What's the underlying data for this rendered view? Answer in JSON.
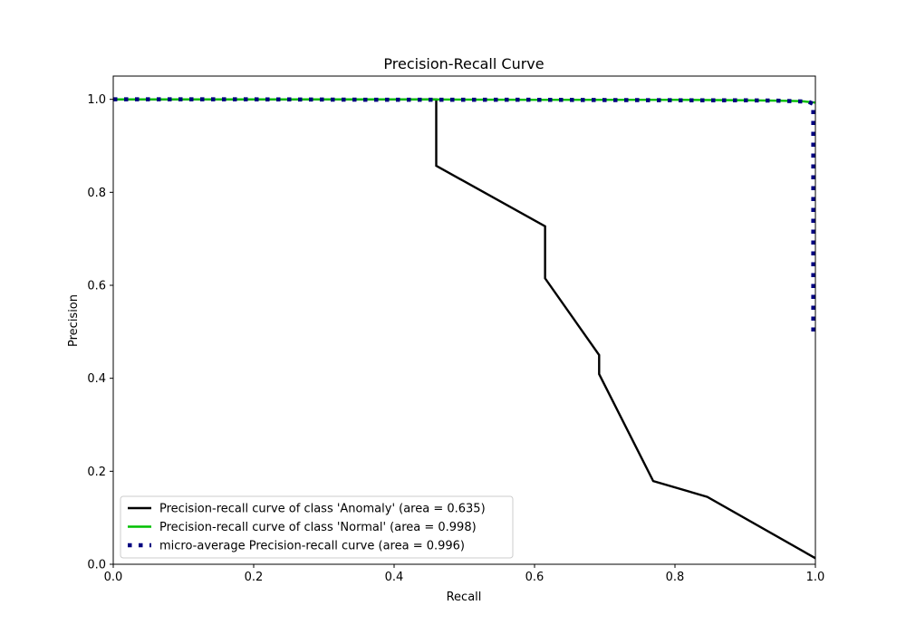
{
  "chart_data": {
    "type": "line",
    "title": "Precision-Recall Curve",
    "xlabel": "Recall",
    "ylabel": "Precision",
    "xlim": [
      0,
      1
    ],
    "ylim": [
      0,
      1.05
    ],
    "xticks": [
      "0.0",
      "0.2",
      "0.4",
      "0.6",
      "0.8",
      "1.0"
    ],
    "yticks": [
      "0.0",
      "0.2",
      "0.4",
      "0.6",
      "0.8",
      "1.0"
    ],
    "grid": false,
    "legend_position": "lower-left",
    "series": [
      {
        "name": "Precision-recall curve of class 'Anomaly' (area = 0.635)",
        "color": "#000000",
        "style": "solid",
        "x": [
          0.0,
          0.46,
          0.46,
          0.46,
          0.615,
          0.615,
          0.692,
          0.692,
          0.769,
          0.846,
          1.0
        ],
        "y": [
          1.0,
          1.0,
          0.999,
          0.857,
          0.727,
          0.615,
          0.45,
          0.409,
          0.179,
          0.145,
          0.013
        ]
      },
      {
        "name": "Precision-recall curve of class 'Normal' (area = 0.998)",
        "color": "#00bf00",
        "style": "solid",
        "x": [
          0.0,
          0.2,
          0.4,
          0.6,
          0.8,
          0.9,
          0.95,
          0.98,
          1.0
        ],
        "y": [
          1.0,
          1.0,
          1.0,
          0.999,
          0.999,
          0.998,
          0.997,
          0.996,
          0.993
        ]
      },
      {
        "name": "micro-average Precision-recall curve (area = 0.996)",
        "color": "#000080",
        "style": "dotted",
        "x": [
          0.0,
          0.2,
          0.4,
          0.6,
          0.8,
          0.9,
          0.95,
          0.99,
          0.997,
          0.997
        ],
        "y": [
          1.0,
          1.0,
          0.999,
          0.999,
          0.998,
          0.998,
          0.997,
          0.995,
          0.99,
          0.5
        ]
      }
    ]
  }
}
